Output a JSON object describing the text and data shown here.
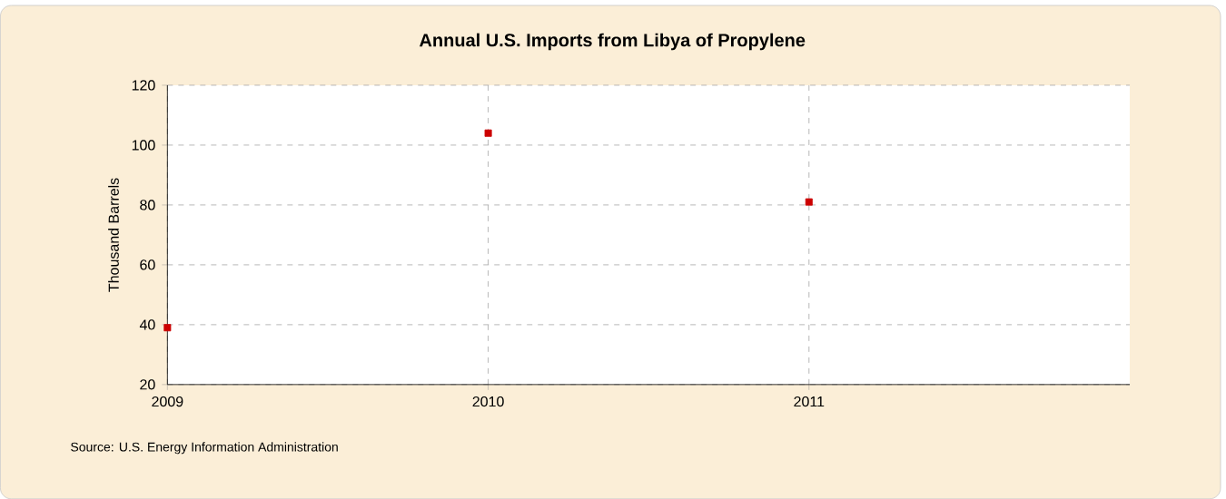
{
  "chart_data": {
    "type": "scatter",
    "title": "Annual U.S. Imports from Libya of Propylene",
    "ylabel": "Thousand Barrels",
    "x": [
      2009,
      2010,
      2011
    ],
    "series": [
      {
        "color": "#cc0000",
        "values": [
          39,
          104,
          81
        ]
      }
    ],
    "xlim": [
      2009,
      2012
    ],
    "xticks": [
      2009,
      2010,
      2011
    ],
    "ylim": [
      20,
      120
    ],
    "yticks": [
      20,
      40,
      60,
      80,
      100,
      120
    ],
    "grid": true,
    "marker": "square",
    "annotations": [
      "Source: U.S. Energy Information Administration"
    ]
  }
}
